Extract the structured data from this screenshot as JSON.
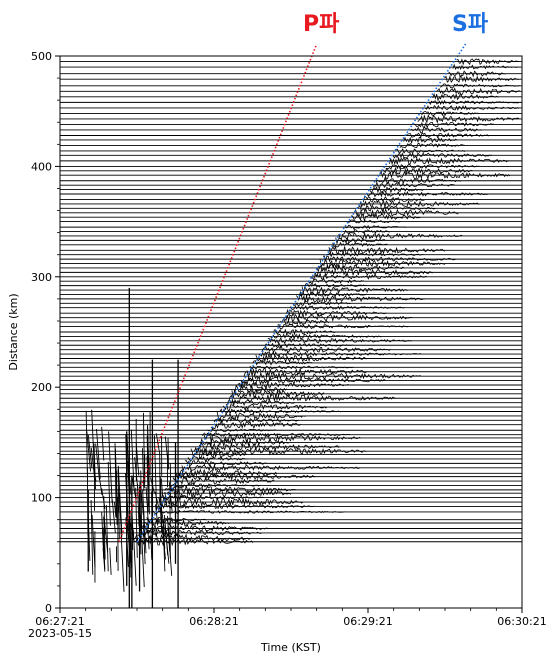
{
  "chart_data": {
    "type": "scatter",
    "xlabel": "Time (KST)",
    "ylabel": "Distance (km)",
    "xlim_seconds_after_06_27_21": [
      0,
      180
    ],
    "ylim": [
      0,
      500
    ],
    "x_ticks": [
      {
        "value": 0,
        "label": "06:27:21",
        "sublabel": "2023-05-15"
      },
      {
        "value": 60,
        "label": "06:28:21",
        "sublabel": ""
      },
      {
        "value": 120,
        "label": "06:29:21",
        "sublabel": ""
      },
      {
        "value": 180,
        "label": "06:30:21",
        "sublabel": ""
      }
    ],
    "y_ticks": [
      0,
      100,
      200,
      300,
      400,
      500
    ],
    "grid": false,
    "series": [
      {
        "name": "P파",
        "color": "#e8191f",
        "style": "dotted",
        "x": [
          23,
          100
        ],
        "y": [
          60,
          500
        ]
      },
      {
        "name": "S파",
        "color": "#1c6fe0",
        "style": "dotted",
        "x": [
          30,
          158
        ],
        "y": [
          60,
          500
        ]
      }
    ],
    "station_distances_km": [
      60,
      63,
      68,
      72,
      77,
      80,
      87,
      92,
      96,
      100,
      104,
      107,
      111,
      115,
      119,
      122,
      127,
      131,
      135,
      139,
      142,
      146,
      150,
      154,
      157,
      161,
      166,
      170,
      174,
      178,
      182,
      186,
      190,
      194,
      198,
      202,
      206,
      210,
      214,
      218,
      222,
      226,
      230,
      234,
      238,
      242,
      246,
      250,
      255,
      259,
      263,
      267,
      272,
      276,
      280,
      284,
      288,
      292,
      296,
      300,
      304,
      308,
      312,
      316,
      320,
      324,
      329,
      333,
      337,
      341,
      345,
      350,
      354,
      358,
      362,
      366,
      370,
      375,
      379,
      383,
      387,
      392,
      396,
      400,
      405,
      410,
      414,
      419,
      424,
      428,
      433,
      438,
      443,
      448,
      453,
      458,
      463,
      468,
      473,
      479,
      484,
      490,
      495
    ]
  },
  "labels": {
    "p_wave": "P파",
    "s_wave": "S파",
    "x_axis": "Time (KST)",
    "y_axis": "Distance (km)"
  },
  "colors": {
    "p_wave": "#e8191f",
    "s_wave": "#1c6fe0",
    "trace": "#000000"
  }
}
